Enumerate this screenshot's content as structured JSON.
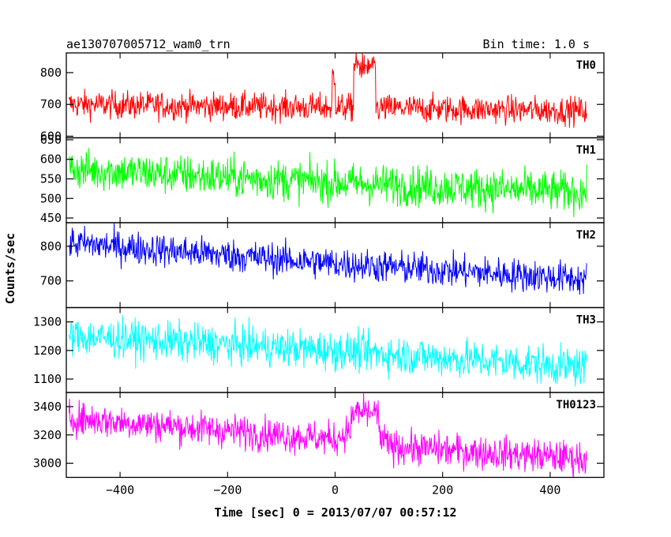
{
  "header": {
    "title": "ae130707005712_wam0_trn",
    "bin_time": "Bin time: 1.0 s"
  },
  "chart_data": {
    "type": "line",
    "title": "ae130707005712_wam0_trn",
    "xlabel": "Time [sec] 0 = 2013/07/07 00:57:12",
    "ylabel": "Counts/sec",
    "xlim": [
      -500,
      500
    ],
    "x_range": [
      -495,
      468
    ],
    "x_ticks": [
      -400,
      -200,
      0,
      200,
      400
    ],
    "x_tick_labels": [
      "−400",
      "−200",
      "0",
      "200",
      "400"
    ],
    "grid": false,
    "panels": [
      {
        "name": "TH0",
        "color": "#ff0000",
        "ylim": [
          595,
          862
        ],
        "ticks": [
          600,
          700,
          800
        ],
        "tick_labels": [
          "600",
          "700",
          "800"
        ],
        "trend": [
          [
            -495,
            700
          ],
          [
            0,
            690
          ],
          [
            468,
            680
          ]
        ],
        "noise": 22,
        "bursts": [
          [
            35,
            75,
            820
          ],
          [
            -5,
            0,
            790
          ]
        ]
      },
      {
        "name": "TH1",
        "color": "#00ff00",
        "ylim": [
          438,
          655
        ],
        "ticks": [
          450,
          500,
          550,
          600,
          650
        ],
        "tick_labels": [
          "450",
          "500",
          "550",
          "600",
          "650"
        ],
        "trend": [
          [
            -495,
            575
          ],
          [
            0,
            540
          ],
          [
            468,
            515
          ]
        ],
        "noise": 26,
        "bursts": []
      },
      {
        "name": "TH2",
        "color": "#0000ff",
        "ylim": [
          623,
          868
        ],
        "ticks": [
          700,
          800
        ],
        "tick_labels": [
          "700",
          "800"
        ],
        "trend": [
          [
            -495,
            810
          ],
          [
            0,
            750
          ],
          [
            468,
            705
          ]
        ],
        "noise": 24,
        "bursts": []
      },
      {
        "name": "TH3",
        "color": "#00ffff",
        "ylim": [
          1053,
          1350
        ],
        "ticks": [
          1100,
          1200,
          1300
        ],
        "tick_labels": [
          "1100",
          "1200",
          "1300"
        ],
        "trend": [
          [
            -495,
            1250
          ],
          [
            0,
            1200
          ],
          [
            468,
            1140
          ]
        ],
        "noise": 34,
        "bursts": []
      },
      {
        "name": "TH0123",
        "color": "#ff00ff",
        "ylim": [
          2900,
          3500
        ],
        "ticks": [
          3000,
          3200,
          3400
        ],
        "tick_labels": [
          "3000",
          "3200",
          "3400"
        ],
        "trend": [
          [
            -495,
            3320
          ],
          [
            0,
            3170
          ],
          [
            60,
            3300
          ],
          [
            100,
            3120
          ],
          [
            468,
            3030
          ]
        ],
        "noise": 60,
        "bursts": [
          [
            30,
            80,
            3350
          ]
        ]
      }
    ]
  }
}
